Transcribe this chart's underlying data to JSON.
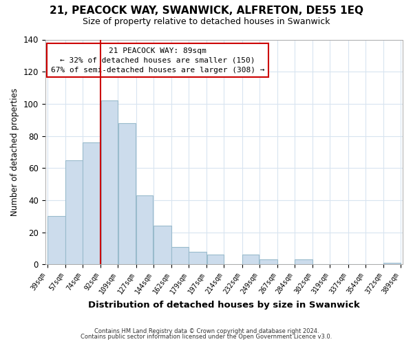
{
  "title": "21, PEACOCK WAY, SWANWICK, ALFRETON, DE55 1EQ",
  "subtitle": "Size of property relative to detached houses in Swanwick",
  "xlabel": "Distribution of detached houses by size in Swanwick",
  "ylabel": "Number of detached properties",
  "bar_left_edges": [
    39,
    57,
    74,
    92,
    109,
    127,
    144,
    162,
    179,
    197,
    214,
    232,
    249,
    267,
    284,
    302,
    319,
    337,
    354,
    372
  ],
  "bar_widths": [
    18,
    17,
    18,
    17,
    18,
    17,
    18,
    17,
    18,
    17,
    18,
    17,
    18,
    17,
    18,
    17,
    18,
    17,
    18,
    17
  ],
  "bar_heights": [
    30,
    65,
    76,
    102,
    88,
    43,
    24,
    11,
    8,
    6,
    0,
    6,
    3,
    0,
    3,
    0,
    0,
    0,
    0,
    1
  ],
  "bar_color": "#ccdcec",
  "bar_edge_color": "#99bbcc",
  "x_tick_labels": [
    "39sqm",
    "57sqm",
    "74sqm",
    "92sqm",
    "109sqm",
    "127sqm",
    "144sqm",
    "162sqm",
    "179sqm",
    "197sqm",
    "214sqm",
    "232sqm",
    "249sqm",
    "267sqm",
    "284sqm",
    "302sqm",
    "319sqm",
    "337sqm",
    "354sqm",
    "372sqm",
    "389sqm"
  ],
  "ylim": [
    0,
    140
  ],
  "yticks": [
    0,
    20,
    40,
    60,
    80,
    100,
    120,
    140
  ],
  "property_line_x": 92,
  "property_line_color": "#cc0000",
  "annotation_title": "21 PEACOCK WAY: 89sqm",
  "annotation_line1": "← 32% of detached houses are smaller (150)",
  "annotation_line2": "67% of semi-detached houses are larger (308) →",
  "footer_line1": "Contains HM Land Registry data © Crown copyright and database right 2024.",
  "footer_line2": "Contains public sector information licensed under the Open Government Licence v3.0.",
  "bg_color": "#ffffff",
  "plot_bg_color": "#ffffff",
  "grid_color": "#d8e4f0"
}
